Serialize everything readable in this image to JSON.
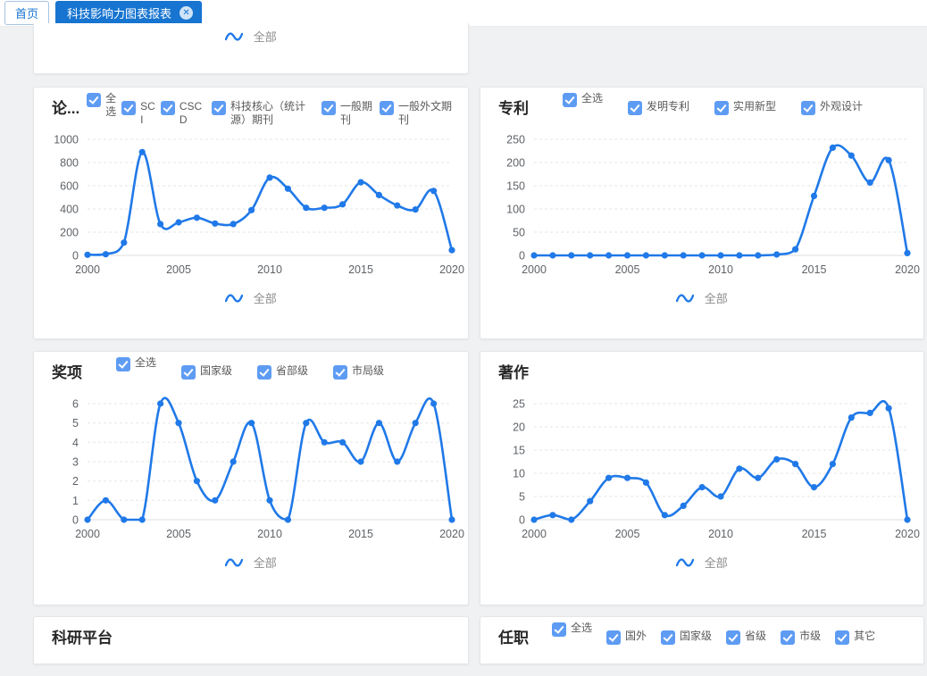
{
  "tab_bar": {
    "tabs": [
      {
        "label": "首页",
        "active": false
      },
      {
        "label": "科技影响力图表报表",
        "active": true,
        "close_glyph": "✕"
      }
    ]
  },
  "colors": {
    "accent": "#1774d0",
    "checkbox_blue": "#5e9cf3",
    "line_blue": "#2079e8",
    "background_gray": "#f0f1f2"
  },
  "panels": {
    "top_partial": {
      "legend_label": "全部"
    },
    "papers": {
      "title": "论...",
      "filters": [
        "全选",
        "SCI",
        "CSCD",
        "科技核心（统计源）期刊",
        "一般期刊",
        "一般外文期刊"
      ],
      "legend_label": "全部"
    },
    "patents": {
      "title": "专利",
      "filters": [
        "全选",
        "发明专利",
        "实用新型",
        "外观设计"
      ],
      "legend_label": "全部"
    },
    "awards": {
      "title": "奖项",
      "filters": [
        "全选",
        "国家级",
        "省部级",
        "市局级"
      ],
      "legend_label": "全部"
    },
    "works": {
      "title": "著作",
      "legend_label": "全部"
    },
    "platform": {
      "title": "科研平台"
    },
    "positions": {
      "title": "任职",
      "filters": [
        "全选",
        "国外",
        "国家级",
        "省级",
        "市级",
        "其它"
      ]
    }
  },
  "chart_data": [
    {
      "type": "line",
      "title": "论...",
      "series_name": "全部",
      "color": "#2079e8",
      "x": [
        2000,
        2001,
        2002,
        2003,
        2004,
        2005,
        2006,
        2007,
        2008,
        2009,
        2010,
        2011,
        2012,
        2013,
        2014,
        2015,
        2016,
        2017,
        2018,
        2019,
        2020
      ],
      "values": [
        5,
        10,
        110,
        890,
        270,
        285,
        325,
        275,
        270,
        390,
        670,
        575,
        410,
        410,
        440,
        630,
        520,
        430,
        395,
        555,
        45
      ],
      "ylim": [
        0,
        1000
      ],
      "yticks": [
        0,
        200,
        400,
        600,
        800,
        1000
      ],
      "xticks": [
        2000,
        2005,
        2010,
        2015,
        2020
      ],
      "xlabel": "",
      "ylabel": "",
      "grid": true,
      "legend_position": "bottom"
    },
    {
      "type": "line",
      "title": "专利",
      "series_name": "全部",
      "color": "#2079e8",
      "x": [
        2000,
        2001,
        2002,
        2003,
        2004,
        2005,
        2006,
        2007,
        2008,
        2009,
        2010,
        2011,
        2012,
        2013,
        2014,
        2015,
        2016,
        2017,
        2018,
        2019,
        2020
      ],
      "values": [
        0,
        0,
        0,
        0,
        0,
        0,
        0,
        0,
        0,
        0,
        0,
        0,
        0,
        2,
        13,
        128,
        232,
        215,
        157,
        205,
        5
      ],
      "ylim": [
        0,
        250
      ],
      "yticks": [
        0,
        50,
        100,
        150,
        200,
        250
      ],
      "xticks": [
        2000,
        2005,
        2010,
        2015,
        2020
      ],
      "xlabel": "",
      "ylabel": "",
      "grid": true,
      "legend_position": "bottom"
    },
    {
      "type": "line",
      "title": "奖项",
      "series_name": "全部",
      "color": "#2079e8",
      "x": [
        2000,
        2001,
        2002,
        2003,
        2004,
        2005,
        2006,
        2007,
        2008,
        2009,
        2010,
        2011,
        2012,
        2013,
        2014,
        2015,
        2016,
        2017,
        2018,
        2019,
        2020
      ],
      "values": [
        0,
        1,
        0,
        0,
        6,
        5,
        2,
        1,
        3,
        5,
        1,
        0,
        5,
        4,
        4,
        3,
        5,
        3,
        5,
        6,
        0
      ],
      "ylim": [
        0,
        6
      ],
      "yticks": [
        0,
        1,
        2,
        3,
        4,
        5,
        6
      ],
      "xticks": [
        2000,
        2005,
        2010,
        2015,
        2020
      ],
      "xlabel": "",
      "ylabel": "",
      "grid": true,
      "legend_position": "bottom"
    },
    {
      "type": "line",
      "title": "著作",
      "series_name": "全部",
      "color": "#2079e8",
      "x": [
        2000,
        2001,
        2002,
        2003,
        2004,
        2005,
        2006,
        2007,
        2008,
        2009,
        2010,
        2011,
        2012,
        2013,
        2014,
        2015,
        2016,
        2017,
        2018,
        2019,
        2020
      ],
      "values": [
        0,
        1,
        0,
        4,
        9,
        9,
        8,
        1,
        3,
        7,
        5,
        11,
        9,
        13,
        12,
        7,
        12,
        22,
        23,
        24,
        0
      ],
      "ylim": [
        0,
        25
      ],
      "yticks": [
        0,
        5,
        10,
        15,
        20,
        25
      ],
      "xticks": [
        2000,
        2005,
        2010,
        2015,
        2020
      ],
      "xlabel": "",
      "ylabel": "",
      "grid": true,
      "legend_position": "bottom"
    }
  ]
}
